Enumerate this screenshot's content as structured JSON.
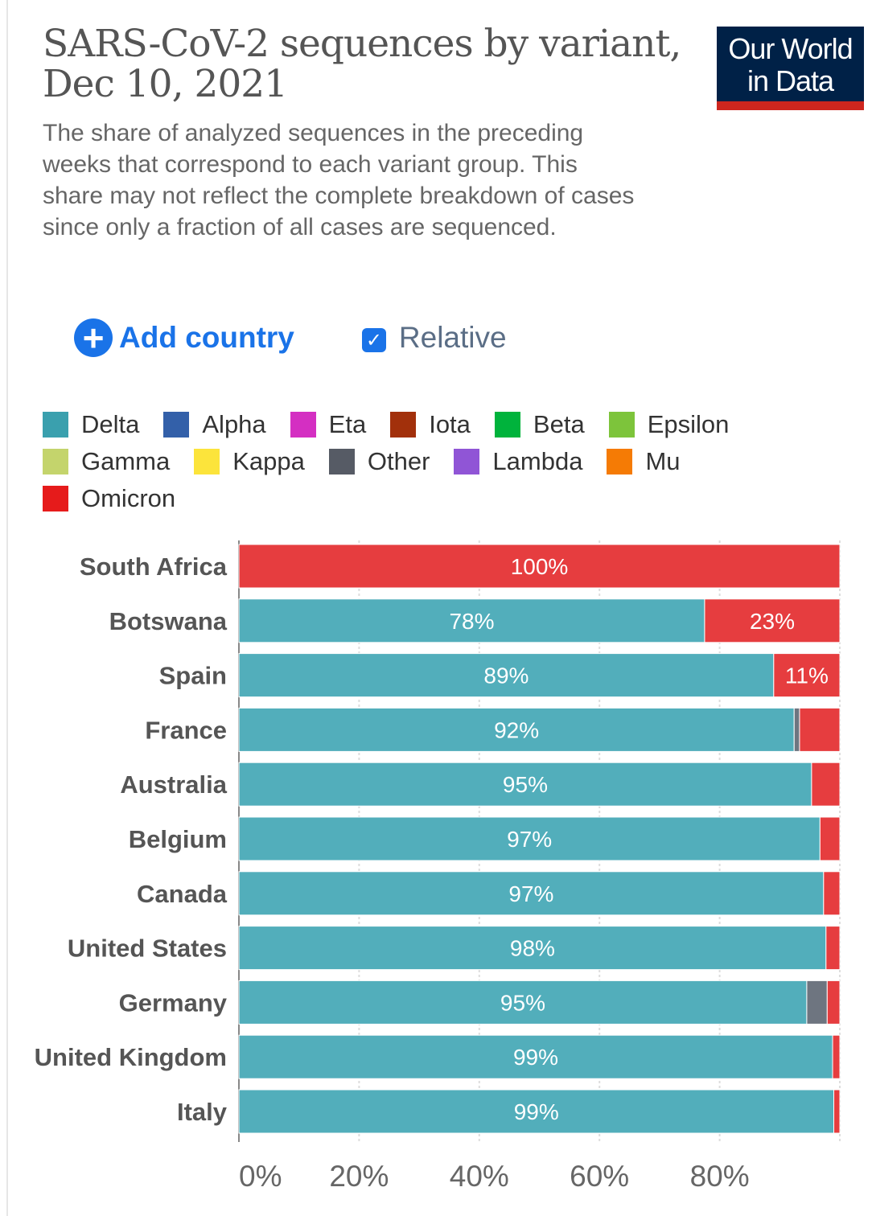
{
  "header": {
    "title": "SARS-CoV-2 sequences by variant, Dec 10, 2021",
    "subtitle": "The share of analyzed sequences in the preceding weeks that correspond to each variant group. This share may not reflect the complete breakdown of cases since only a fraction of all cases are sequenced.",
    "logo_line1": "Our World",
    "logo_line2": "in Data"
  },
  "controls": {
    "add_country_label": "Add country",
    "add_icon": "plus-circle-icon",
    "relative_label": "Relative",
    "relative_checked": true
  },
  "legend": [
    {
      "name": "Delta",
      "color": "#3aa0ae"
    },
    {
      "name": "Alpha",
      "color": "#3360a9"
    },
    {
      "name": "Eta",
      "color": "#d42fc2"
    },
    {
      "name": "Iota",
      "color": "#a2300b"
    },
    {
      "name": "Beta",
      "color": "#00b33c"
    },
    {
      "name": "Epsilon",
      "color": "#7dc43b"
    },
    {
      "name": "Gamma",
      "color": "#c4d46c"
    },
    {
      "name": "Kappa",
      "color": "#fce43b"
    },
    {
      "name": "Other",
      "color": "#565b65"
    },
    {
      "name": "Lambda",
      "color": "#9055d6"
    },
    {
      "name": "Mu",
      "color": "#f57b05"
    },
    {
      "name": "Omicron",
      "color": "#e61b1b"
    }
  ],
  "chart_data": {
    "type": "bar",
    "orientation": "horizontal-stacked",
    "title": "SARS-CoV-2 sequences by variant, Dec 10, 2021",
    "xlim": [
      0,
      100
    ],
    "x_ticks": [
      "0%",
      "20%",
      "40%",
      "60%",
      "80%"
    ],
    "grid": "vertical dotted",
    "categories": [
      "South Africa",
      "Botswana",
      "Spain",
      "France",
      "Australia",
      "Belgium",
      "Canada",
      "United States",
      "Germany",
      "United Kingdom",
      "Italy"
    ],
    "series": [
      {
        "name": "Delta",
        "color": "#52aebb",
        "values": [
          0,
          77.5,
          89,
          92.4,
          95.3,
          96.7,
          97.3,
          97.7,
          94.5,
          98.8,
          99
        ],
        "labels": [
          "",
          "78%",
          "89%",
          "92%",
          "95%",
          "97%",
          "97%",
          "98%",
          "95%",
          "99%",
          "99%"
        ]
      },
      {
        "name": "Other",
        "color": "#6e7580",
        "values": [
          0,
          0,
          0,
          0.9,
          0,
          0,
          0,
          0,
          3.4,
          0,
          0
        ],
        "labels": [
          "",
          "",
          "",
          "",
          "",
          "",
          "",
          "",
          "",
          "",
          ""
        ]
      },
      {
        "name": "Omicron",
        "color": "#e63d3f",
        "values": [
          100,
          22.5,
          11,
          6.7,
          4.7,
          3.3,
          2.7,
          2.3,
          2.1,
          1.2,
          1
        ],
        "labels": [
          "100%",
          "23%",
          "11%",
          "",
          "",
          "",
          "",
          "",
          "",
          "",
          ""
        ]
      }
    ]
  }
}
